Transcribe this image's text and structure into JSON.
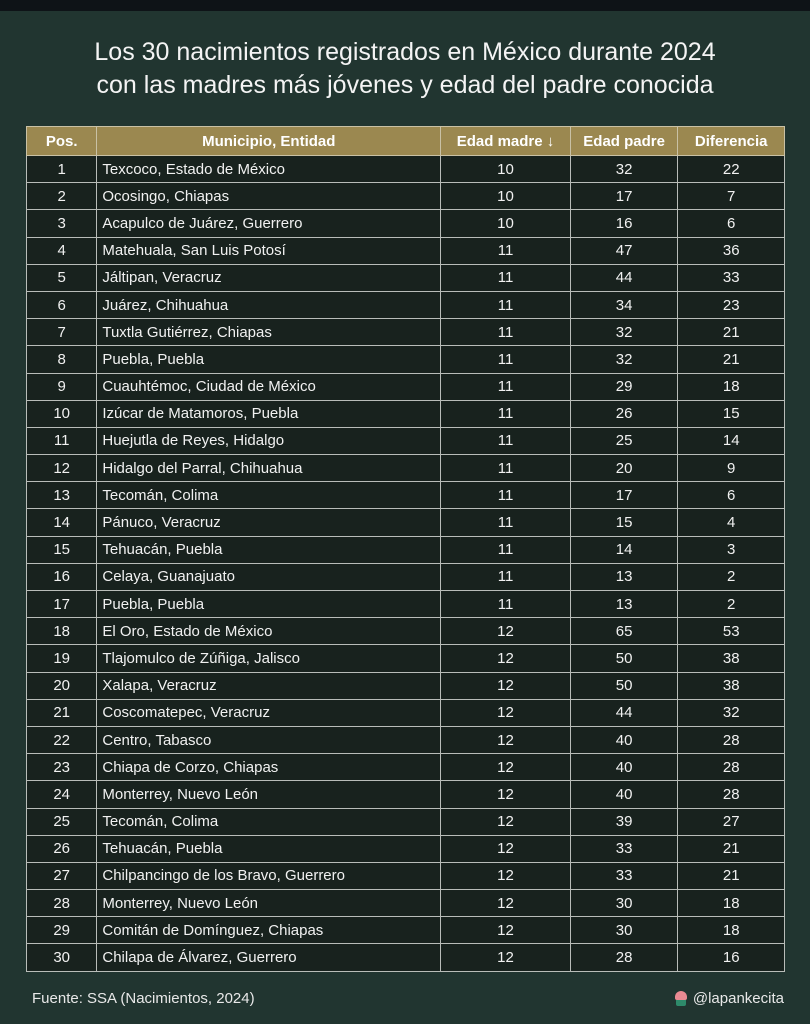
{
  "title_line1": "Los 30 nacimientos registrados en México durante 2024",
  "title_line2": "con las madres más jóvenes y edad del padre conocida",
  "colors": {
    "header": "#9b8850",
    "background": "#213530",
    "row": "#18221e"
  },
  "table": {
    "headers": [
      "Pos.",
      "Municipio, Entidad",
      "Edad madre ↓",
      "Edad padre",
      "Diferencia"
    ],
    "rows": [
      [
        "1",
        "Texcoco, Estado de México",
        "10",
        "32",
        "22"
      ],
      [
        "2",
        "Ocosingo, Chiapas",
        "10",
        "17",
        "7"
      ],
      [
        "3",
        "Acapulco de Juárez, Guerrero",
        "10",
        "16",
        "6"
      ],
      [
        "4",
        "Matehuala, San Luis Potosí",
        "11",
        "47",
        "36"
      ],
      [
        "5",
        "Jáltipan, Veracruz",
        "11",
        "44",
        "33"
      ],
      [
        "6",
        "Juárez, Chihuahua",
        "11",
        "34",
        "23"
      ],
      [
        "7",
        "Tuxtla Gutiérrez, Chiapas",
        "11",
        "32",
        "21"
      ],
      [
        "8",
        "Puebla, Puebla",
        "11",
        "32",
        "21"
      ],
      [
        "9",
        "Cuauhtémoc, Ciudad de México",
        "11",
        "29",
        "18"
      ],
      [
        "10",
        "Izúcar de Matamoros, Puebla",
        "11",
        "26",
        "15"
      ],
      [
        "11",
        "Huejutla de Reyes, Hidalgo",
        "11",
        "25",
        "14"
      ],
      [
        "12",
        "Hidalgo del Parral, Chihuahua",
        "11",
        "20",
        "9"
      ],
      [
        "13",
        "Tecomán, Colima",
        "11",
        "17",
        "6"
      ],
      [
        "14",
        "Pánuco, Veracruz",
        "11",
        "15",
        "4"
      ],
      [
        "15",
        "Tehuacán, Puebla",
        "11",
        "14",
        "3"
      ],
      [
        "16",
        "Celaya, Guanajuato",
        "11",
        "13",
        "2"
      ],
      [
        "17",
        "Puebla, Puebla",
        "11",
        "13",
        "2"
      ],
      [
        "18",
        "El Oro, Estado de México",
        "12",
        "65",
        "53"
      ],
      [
        "19",
        "Tlajomulco de Zúñiga, Jalisco",
        "12",
        "50",
        "38"
      ],
      [
        "20",
        "Xalapa, Veracruz",
        "12",
        "50",
        "38"
      ],
      [
        "21",
        "Coscomatepec, Veracruz",
        "12",
        "44",
        "32"
      ],
      [
        "22",
        "Centro, Tabasco",
        "12",
        "40",
        "28"
      ],
      [
        "23",
        "Chiapa de Corzo, Chiapas",
        "12",
        "40",
        "28"
      ],
      [
        "24",
        "Monterrey, Nuevo León",
        "12",
        "40",
        "28"
      ],
      [
        "25",
        "Tecomán, Colima",
        "12",
        "39",
        "27"
      ],
      [
        "26",
        "Tehuacán, Puebla",
        "12",
        "33",
        "21"
      ],
      [
        "27",
        "Chilpancingo de los Bravo, Guerrero",
        "12",
        "33",
        "21"
      ],
      [
        "28",
        "Monterrey, Nuevo León",
        "12",
        "30",
        "18"
      ],
      [
        "29",
        "Comitán de Domínguez, Chiapas",
        "12",
        "30",
        "18"
      ],
      [
        "30",
        "Chilapa de Álvarez, Guerrero",
        "12",
        "28",
        "16"
      ]
    ]
  },
  "footer": {
    "source": "Fuente: SSA (Nacimientos, 2024)",
    "handle": "@lapankecita",
    "handle_icon": "cupcake-icon"
  }
}
